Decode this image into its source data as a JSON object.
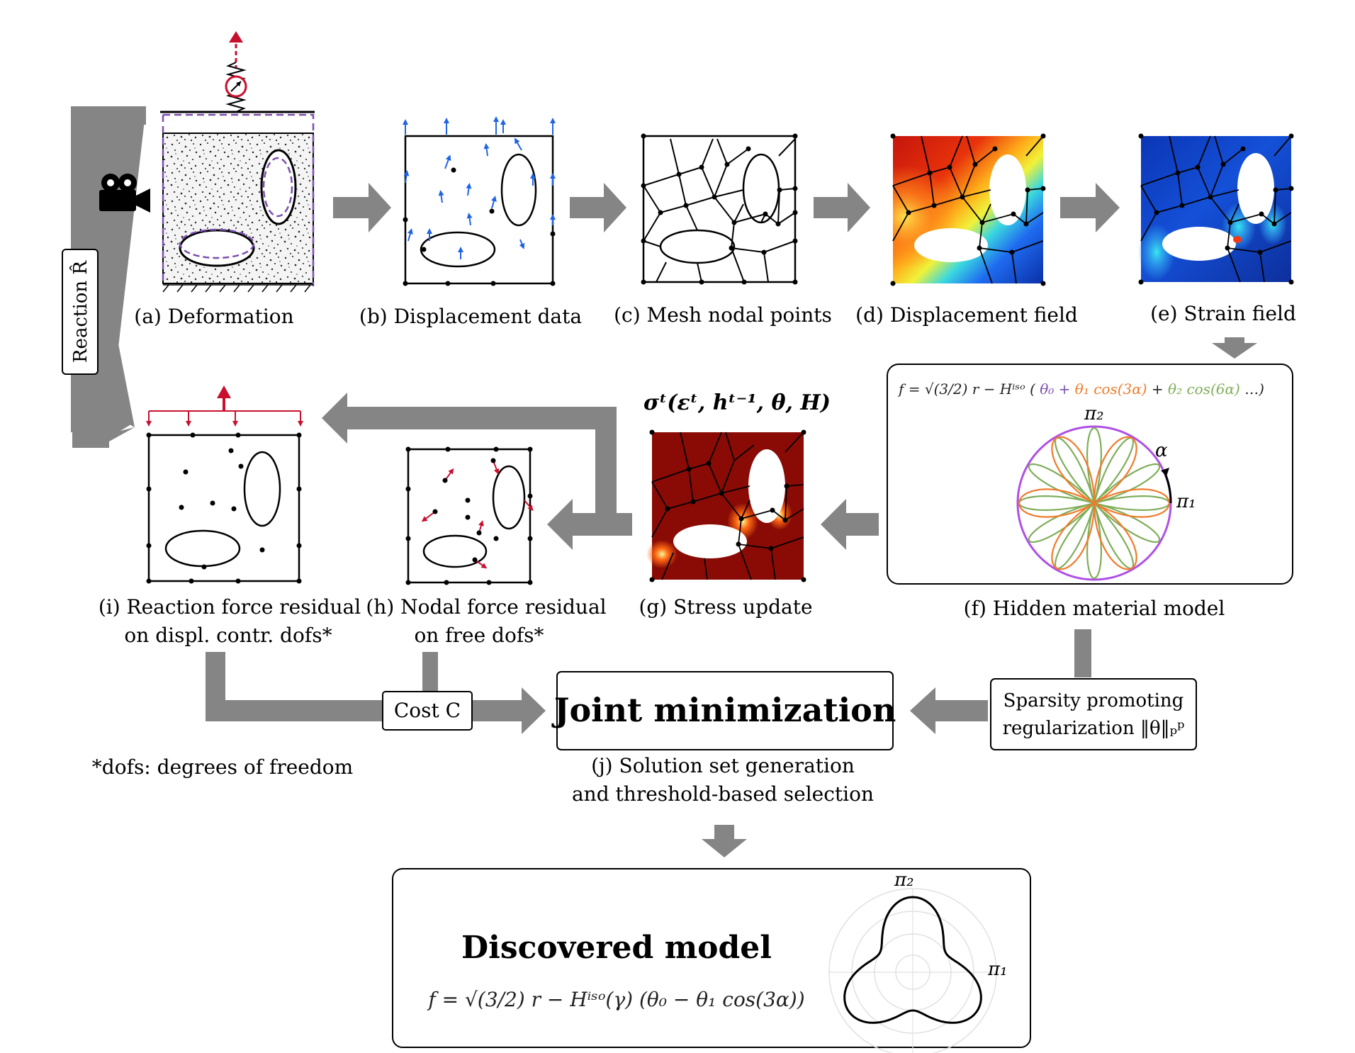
{
  "captions": {
    "a": "(a) Deformation",
    "b": "(b) Displacement data",
    "c": "(c) Mesh nodal points",
    "d": "(d) Displacement field",
    "e": "(e) Strain field",
    "f": "(f) Hidden material model",
    "g": "(g) Stress update",
    "h1": "(h) Nodal force residual",
    "h2": "on free dofs*",
    "i1": "(i) Reaction force residual",
    "i2": "on displ. contr. dofs*",
    "j1": "(j) Solution set generation",
    "j2": "and threshold-based selection"
  },
  "labels": {
    "reaction": "Reaction R̂",
    "cost": "Cost C",
    "joint": "Joint minimization",
    "sparsity1": "Sparsity promoting",
    "sparsity2": "regularization ‖θ‖ₚᵖ",
    "footnote": "*dofs: degrees of freedom",
    "stress_formula": "σᵗ(εᵗ, hᵗ⁻¹, θ, H)",
    "discovered_title": "Discovered model",
    "discovered_formula": "f = √(3/2) r − Hⁱˢᵒ(γ) (θ₀ − θ₁ cos(3α))",
    "hidden_f": "f = √(3/2) r − Hⁱˢᵒ (",
    "hidden_t0": "θ₀ +",
    "hidden_t1": "θ₁ cos(3α)",
    "hidden_plus": "+",
    "hidden_t2": "θ₂ cos(6α)",
    "hidden_end": "…)",
    "pi1": "π₁",
    "pi2": "π₂",
    "alpha": "α"
  },
  "colors": {
    "arrow_gray": "#858585",
    "blue_arrow": "#1f63e6",
    "red_arrow": "#c8102e",
    "purple": "#7b4fb0",
    "circle_violet": "#b04fe6",
    "orange": "#f07a2a",
    "green": "#7fae5a",
    "stress_dark": "#8a0b05"
  }
}
